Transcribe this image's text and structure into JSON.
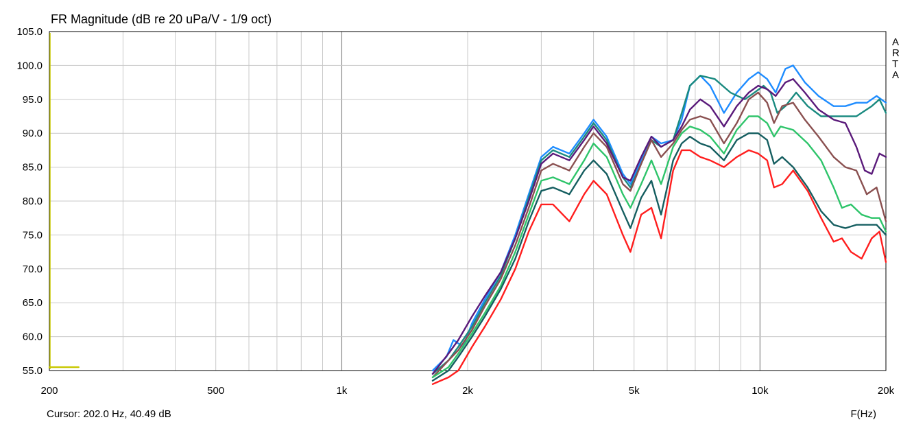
{
  "chart_data": {
    "type": "line",
    "title": "FR Magnitude (dB re 20 uPa/V - 1/9 oct)",
    "xlabel": "F(Hz)",
    "ylabel": "",
    "xscale": "log",
    "xlim": [
      200,
      20000
    ],
    "ylim": [
      55,
      105
    ],
    "grid": true,
    "y_ticks": [
      "55.0",
      "60.0",
      "65.0",
      "70.0",
      "75.0",
      "80.0",
      "85.0",
      "90.0",
      "95.0",
      "100.0",
      "105.0"
    ],
    "x_ticks": [
      {
        "value": 200,
        "label": "200"
      },
      {
        "value": 500,
        "label": "500"
      },
      {
        "value": 1000,
        "label": "1k"
      },
      {
        "value": 2000,
        "label": "2k"
      },
      {
        "value": 5000,
        "label": "5k"
      },
      {
        "value": 10000,
        "label": "10k"
      },
      {
        "value": 20000,
        "label": "20k"
      }
    ],
    "side_labels": [
      "A",
      "R",
      "T",
      "A"
    ],
    "cursor_text": "Cursor: 202.0 Hz, 40.49 dB",
    "series": [
      {
        "color": "#1e8cff",
        "points": [
          [
            1650,
            55
          ],
          [
            1780,
            57
          ],
          [
            1850,
            59.5
          ],
          [
            1950,
            58.5
          ],
          [
            2050,
            62
          ],
          [
            2200,
            65.5
          ],
          [
            2400,
            69.5
          ],
          [
            2600,
            75
          ],
          [
            2800,
            81
          ],
          [
            3000,
            86.5
          ],
          [
            3200,
            88
          ],
          [
            3500,
            87
          ],
          [
            3800,
            90
          ],
          [
            4000,
            92
          ],
          [
            4300,
            89.5
          ],
          [
            4700,
            84
          ],
          [
            4900,
            82.5
          ],
          [
            5200,
            86
          ],
          [
            5500,
            89.5
          ],
          [
            5800,
            88.5
          ],
          [
            6200,
            89
          ],
          [
            6500,
            92
          ],
          [
            6800,
            97
          ],
          [
            7200,
            98.5
          ],
          [
            7600,
            97
          ],
          [
            8200,
            93
          ],
          [
            8800,
            96
          ],
          [
            9400,
            98
          ],
          [
            9900,
            99
          ],
          [
            10400,
            98
          ],
          [
            10900,
            96
          ],
          [
            11500,
            99.5
          ],
          [
            12000,
            100
          ],
          [
            12800,
            97.5
          ],
          [
            13800,
            95.5
          ],
          [
            15000,
            94
          ],
          [
            16000,
            94
          ],
          [
            17000,
            94.5
          ],
          [
            18000,
            94.5
          ],
          [
            19000,
            95.5
          ],
          [
            20000,
            94.5
          ]
        ]
      },
      {
        "color": "#1a8a80",
        "points": [
          [
            1650,
            54.5
          ],
          [
            1800,
            56.5
          ],
          [
            1900,
            58.5
          ],
          [
            2050,
            61.5
          ],
          [
            2200,
            65
          ],
          [
            2400,
            69
          ],
          [
            2600,
            74.5
          ],
          [
            2800,
            80.5
          ],
          [
            3000,
            86
          ],
          [
            3200,
            87.5
          ],
          [
            3500,
            86.5
          ],
          [
            3800,
            89.5
          ],
          [
            4000,
            91.5
          ],
          [
            4300,
            89
          ],
          [
            4700,
            83.5
          ],
          [
            4900,
            82
          ],
          [
            5200,
            85.5
          ],
          [
            5500,
            89
          ],
          [
            5800,
            88
          ],
          [
            6200,
            89
          ],
          [
            6500,
            93
          ],
          [
            6800,
            97
          ],
          [
            7200,
            98.5
          ],
          [
            7800,
            98
          ],
          [
            8500,
            96
          ],
          [
            9200,
            95
          ],
          [
            9700,
            96
          ],
          [
            10200,
            97
          ],
          [
            10600,
            96
          ],
          [
            11000,
            93
          ],
          [
            11500,
            94
          ],
          [
            12200,
            96
          ],
          [
            13000,
            94
          ],
          [
            14000,
            92.5
          ],
          [
            15500,
            92.5
          ],
          [
            17000,
            92.5
          ],
          [
            18500,
            94
          ],
          [
            19300,
            95
          ],
          [
            20000,
            93
          ]
        ]
      },
      {
        "color": "#5a1a7a",
        "points": [
          [
            1650,
            54.5
          ],
          [
            1800,
            57.5
          ],
          [
            1900,
            59.5
          ],
          [
            2050,
            63
          ],
          [
            2200,
            66
          ],
          [
            2400,
            69.5
          ],
          [
            2600,
            74.5
          ],
          [
            2800,
            80
          ],
          [
            3000,
            85.5
          ],
          [
            3200,
            87
          ],
          [
            3500,
            86
          ],
          [
            3800,
            89
          ],
          [
            4000,
            91
          ],
          [
            4300,
            88.5
          ],
          [
            4700,
            83.5
          ],
          [
            4900,
            83
          ],
          [
            5200,
            86.5
          ],
          [
            5500,
            89.5
          ],
          [
            5800,
            88
          ],
          [
            6200,
            89
          ],
          [
            6500,
            91
          ],
          [
            6800,
            93.5
          ],
          [
            7200,
            95
          ],
          [
            7600,
            94
          ],
          [
            8200,
            91
          ],
          [
            8800,
            94
          ],
          [
            9400,
            96
          ],
          [
            9900,
            97
          ],
          [
            10400,
            96.5
          ],
          [
            10900,
            95.5
          ],
          [
            11500,
            97.5
          ],
          [
            12000,
            98
          ],
          [
            12800,
            96
          ],
          [
            13800,
            93.5
          ],
          [
            15000,
            92
          ],
          [
            16000,
            91.5
          ],
          [
            17000,
            88
          ],
          [
            17800,
            84.5
          ],
          [
            18500,
            84
          ],
          [
            19300,
            87
          ],
          [
            20000,
            86.5
          ]
        ]
      },
      {
        "color": "#8a5050",
        "points": [
          [
            1650,
            54
          ],
          [
            1800,
            56.5
          ],
          [
            1900,
            58
          ],
          [
            2050,
            61
          ],
          [
            2200,
            64.5
          ],
          [
            2400,
            68.5
          ],
          [
            2600,
            73.5
          ],
          [
            2800,
            79
          ],
          [
            3000,
            84.5
          ],
          [
            3200,
            85.5
          ],
          [
            3500,
            84.5
          ],
          [
            3800,
            88
          ],
          [
            4000,
            90
          ],
          [
            4300,
            88
          ],
          [
            4700,
            82.5
          ],
          [
            4900,
            81.5
          ],
          [
            5200,
            85.5
          ],
          [
            5500,
            89
          ],
          [
            5800,
            86.5
          ],
          [
            6200,
            88.5
          ],
          [
            6500,
            90.5
          ],
          [
            6800,
            92
          ],
          [
            7200,
            92.5
          ],
          [
            7600,
            92
          ],
          [
            8200,
            88.5
          ],
          [
            8800,
            91.5
          ],
          [
            9400,
            95
          ],
          [
            9900,
            96
          ],
          [
            10400,
            94.5
          ],
          [
            10800,
            91.5
          ],
          [
            11300,
            94
          ],
          [
            12000,
            94.5
          ],
          [
            12800,
            92
          ],
          [
            13800,
            89.5
          ],
          [
            15000,
            86.5
          ],
          [
            16000,
            85
          ],
          [
            17000,
            84.5
          ],
          [
            18000,
            81
          ],
          [
            19000,
            82
          ],
          [
            20000,
            77
          ]
        ]
      },
      {
        "color": "#2ec46a",
        "points": [
          [
            1650,
            54
          ],
          [
            1800,
            55.5
          ],
          [
            1900,
            57.5
          ],
          [
            2050,
            60.5
          ],
          [
            2200,
            63.5
          ],
          [
            2400,
            67.5
          ],
          [
            2600,
            72.5
          ],
          [
            2800,
            78
          ],
          [
            3000,
            83
          ],
          [
            3200,
            83.5
          ],
          [
            3500,
            82.5
          ],
          [
            3800,
            86
          ],
          [
            4000,
            88.5
          ],
          [
            4300,
            86.5
          ],
          [
            4700,
            81
          ],
          [
            4900,
            79
          ],
          [
            5200,
            82.5
          ],
          [
            5500,
            86
          ],
          [
            5800,
            82.5
          ],
          [
            6200,
            88
          ],
          [
            6500,
            90
          ],
          [
            6800,
            91
          ],
          [
            7200,
            90.5
          ],
          [
            7600,
            89.5
          ],
          [
            8200,
            87
          ],
          [
            8800,
            90.5
          ],
          [
            9400,
            92.5
          ],
          [
            9900,
            92.5
          ],
          [
            10400,
            91.5
          ],
          [
            10800,
            89.5
          ],
          [
            11200,
            91
          ],
          [
            12000,
            90.5
          ],
          [
            13000,
            88.5
          ],
          [
            14000,
            86
          ],
          [
            15000,
            82
          ],
          [
            15700,
            79
          ],
          [
            16500,
            79.5
          ],
          [
            17500,
            78
          ],
          [
            18500,
            77.5
          ],
          [
            19300,
            77.5
          ],
          [
            20000,
            75.5
          ]
        ]
      },
      {
        "color": "#155e60",
        "points": [
          [
            1650,
            53.5
          ],
          [
            1800,
            55
          ],
          [
            1900,
            57
          ],
          [
            2050,
            60
          ],
          [
            2200,
            63
          ],
          [
            2400,
            67
          ],
          [
            2600,
            71.5
          ],
          [
            2800,
            77
          ],
          [
            3000,
            81.5
          ],
          [
            3200,
            82
          ],
          [
            3500,
            81
          ],
          [
            3800,
            84.5
          ],
          [
            4000,
            86
          ],
          [
            4300,
            84
          ],
          [
            4700,
            78.5
          ],
          [
            4900,
            76
          ],
          [
            5200,
            80.5
          ],
          [
            5500,
            83
          ],
          [
            5800,
            78
          ],
          [
            6200,
            86
          ],
          [
            6500,
            88.5
          ],
          [
            6800,
            89.5
          ],
          [
            7200,
            88.5
          ],
          [
            7600,
            88
          ],
          [
            8200,
            86
          ],
          [
            8800,
            89
          ],
          [
            9400,
            90
          ],
          [
            9900,
            90
          ],
          [
            10400,
            89
          ],
          [
            10800,
            85.5
          ],
          [
            11300,
            86.5
          ],
          [
            12000,
            85
          ],
          [
            13000,
            82
          ],
          [
            14000,
            78.5
          ],
          [
            15000,
            76.5
          ],
          [
            16000,
            76
          ],
          [
            17000,
            76.5
          ],
          [
            18000,
            76.5
          ],
          [
            19000,
            76.5
          ],
          [
            20000,
            75
          ]
        ]
      },
      {
        "color": "#ff1e1e",
        "points": [
          [
            1650,
            53
          ],
          [
            1800,
            54
          ],
          [
            1900,
            55
          ],
          [
            2050,
            58.5
          ],
          [
            2200,
            61.5
          ],
          [
            2400,
            65.5
          ],
          [
            2600,
            70
          ],
          [
            2800,
            75.5
          ],
          [
            3000,
            79.5
          ],
          [
            3200,
            79.5
          ],
          [
            3500,
            77
          ],
          [
            3800,
            81
          ],
          [
            4000,
            83
          ],
          [
            4300,
            81
          ],
          [
            4700,
            75
          ],
          [
            4900,
            72.5
          ],
          [
            5200,
            78
          ],
          [
            5500,
            79
          ],
          [
            5800,
            74.5
          ],
          [
            6200,
            84.5
          ],
          [
            6500,
            87.5
          ],
          [
            6800,
            87.5
          ],
          [
            7200,
            86.5
          ],
          [
            7600,
            86
          ],
          [
            8200,
            85
          ],
          [
            8800,
            86.5
          ],
          [
            9400,
            87.5
          ],
          [
            9900,
            87
          ],
          [
            10400,
            86
          ],
          [
            10800,
            82
          ],
          [
            11300,
            82.5
          ],
          [
            12000,
            84.5
          ],
          [
            13000,
            81.5
          ],
          [
            14000,
            77.5
          ],
          [
            15000,
            74
          ],
          [
            15700,
            74.5
          ],
          [
            16500,
            72.5
          ],
          [
            17500,
            71.5
          ],
          [
            18500,
            74.5
          ],
          [
            19300,
            75.5
          ],
          [
            20000,
            71
          ]
        ]
      },
      {
        "color": "#c8c800",
        "points": [
          [
            200,
            55.5
          ],
          [
            235,
            55.5
          ]
        ]
      }
    ]
  }
}
